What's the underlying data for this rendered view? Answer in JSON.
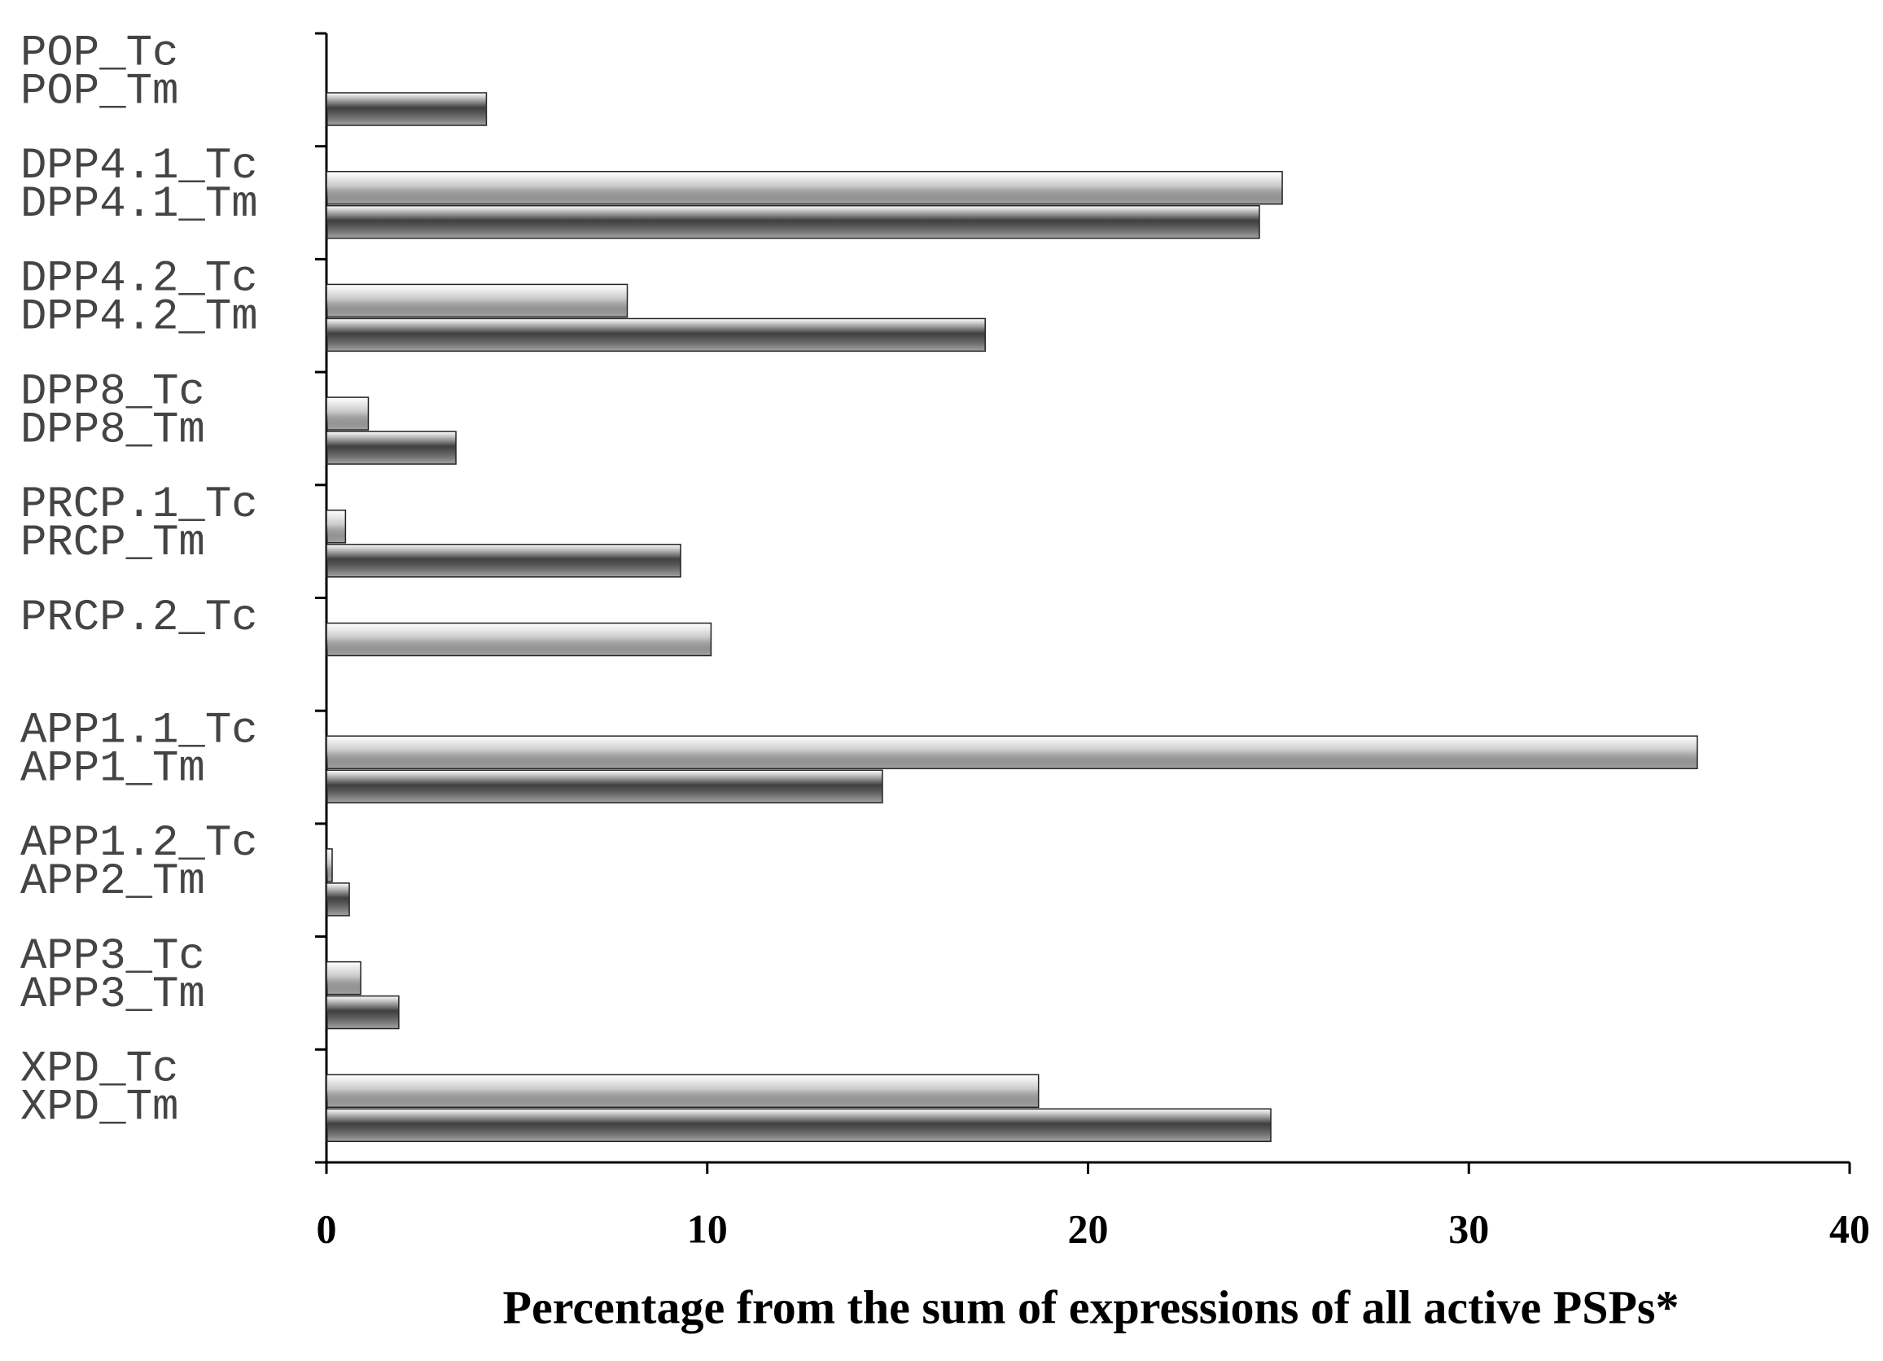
{
  "chart_data": {
    "type": "bar",
    "orientation": "horizontal",
    "xlabel": "Percentage from the sum of expressions of all active PSPs*",
    "xlim": [
      0,
      40
    ],
    "xticks": [
      0,
      10,
      20,
      30,
      40
    ],
    "series": [
      {
        "color": "#c8c8c8",
        "labels": [
          "POP_Tc",
          "DPP4.1_Tc",
          "DPP4.2_Tc",
          "DPP8_Tc",
          "PRCP.1_Tc",
          "PRCP.2_Tc",
          "APP1.1_Tc",
          "APP1.2_Tc",
          "APP3_Tc",
          "XPD_Tc"
        ],
        "values": [
          null,
          25.1,
          7.9,
          1.1,
          0.5,
          10.1,
          36.0,
          0.15,
          0.9,
          18.7
        ]
      },
      {
        "color": "#404040",
        "labels": [
          "POP_Tm",
          "DPP4.1_Tm",
          "DPP4.2_Tm",
          "DPP8_Tm",
          "PRCP_Tm",
          null,
          "APP1_Tm",
          "APP2_Tm",
          "APP3_Tm",
          "XPD_Tm"
        ],
        "values": [
          4.2,
          24.5,
          17.3,
          3.4,
          9.3,
          null,
          14.6,
          0.6,
          1.9,
          24.8
        ]
      }
    ]
  }
}
